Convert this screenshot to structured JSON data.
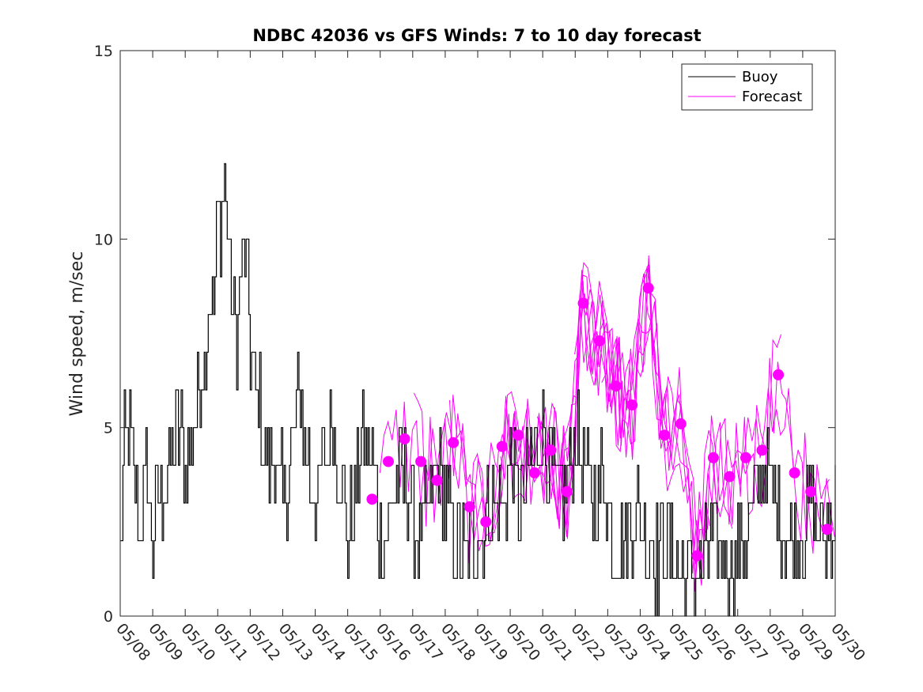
{
  "chart_data": {
    "type": "line",
    "title": "NDBC 42036 vs GFS Winds: 7 to 10 day forecast",
    "xlabel": "",
    "ylabel": "Wind speed, m/sec",
    "ylim": [
      0,
      15
    ],
    "xlim": [
      0,
      22
    ],
    "x_ticks": [
      "05/08",
      "05/09",
      "05/10",
      "05/11",
      "05/12",
      "05/13",
      "05/14",
      "05/15",
      "05/16",
      "05/17",
      "05/18",
      "05/19",
      "05/20",
      "05/21",
      "05/22",
      "05/23",
      "05/24",
      "05/25",
      "05/26",
      "05/27",
      "05/28",
      "05/29",
      "05/30"
    ],
    "y_ticks": [
      0,
      5,
      10,
      15
    ],
    "grid": false,
    "legend_position": "top-right",
    "colors": {
      "buoy": "#000000",
      "forecast": "#ff00ff",
      "axis": "#262626"
    },
    "legend": [
      {
        "label": "Buoy",
        "color": "#000000"
      },
      {
        "label": "Forecast",
        "color": "#ff00ff"
      }
    ],
    "series": [
      {
        "name": "Buoy",
        "x_unit": "days since 05/08",
        "anchors": [
          [
            0.0,
            2
          ],
          [
            0.1,
            4
          ],
          [
            0.2,
            5
          ],
          [
            0.4,
            4
          ],
          [
            0.6,
            2
          ],
          [
            0.8,
            4
          ],
          [
            1.0,
            2
          ],
          [
            1.2,
            3
          ],
          [
            1.5,
            4
          ],
          [
            1.8,
            5
          ],
          [
            2.0,
            4
          ],
          [
            2.2,
            5
          ],
          [
            2.4,
            6
          ],
          [
            2.6,
            7
          ],
          [
            2.8,
            9
          ],
          [
            2.9,
            8
          ],
          [
            3.0,
            11
          ],
          [
            3.1,
            10
          ],
          [
            3.2,
            12
          ],
          [
            3.3,
            10
          ],
          [
            3.5,
            8
          ],
          [
            3.6,
            7
          ],
          [
            3.7,
            9
          ],
          [
            3.8,
            10
          ],
          [
            4.0,
            7
          ],
          [
            4.2,
            6
          ],
          [
            4.5,
            4
          ],
          [
            4.8,
            4
          ],
          [
            5.0,
            3
          ],
          [
            5.2,
            4
          ],
          [
            5.5,
            6
          ],
          [
            5.8,
            4
          ],
          [
            6.0,
            3
          ],
          [
            6.3,
            4
          ],
          [
            6.5,
            5
          ],
          [
            6.8,
            4
          ],
          [
            7.0,
            2
          ],
          [
            7.2,
            3
          ],
          [
            7.5,
            5
          ],
          [
            7.8,
            4
          ],
          [
            8.0,
            2
          ],
          [
            8.3,
            3
          ],
          [
            8.6,
            4
          ],
          [
            8.9,
            3
          ],
          [
            9.2,
            2
          ],
          [
            9.5,
            3
          ],
          [
            9.8,
            4
          ],
          [
            10.0,
            3
          ],
          [
            10.3,
            2
          ],
          [
            10.6,
            1.5
          ],
          [
            10.9,
            2
          ],
          [
            11.2,
            2.5
          ],
          [
            11.5,
            3
          ],
          [
            11.8,
            3
          ],
          [
            12.0,
            4
          ],
          [
            12.3,
            3
          ],
          [
            12.6,
            4
          ],
          [
            12.9,
            5
          ],
          [
            13.2,
            4
          ],
          [
            13.5,
            3
          ],
          [
            13.8,
            4
          ],
          [
            14.0,
            5
          ],
          [
            14.3,
            4
          ],
          [
            14.6,
            3
          ],
          [
            14.9,
            4
          ],
          [
            15.1,
            2
          ],
          [
            15.3,
            1.5
          ],
          [
            15.6,
            2.5
          ],
          [
            15.9,
            3
          ],
          [
            16.2,
            2
          ],
          [
            16.5,
            1.5
          ],
          [
            16.8,
            2
          ],
          [
            17.1,
            1.5
          ],
          [
            17.4,
            1.2
          ],
          [
            17.7,
            1.2
          ],
          [
            18.0,
            1.5
          ],
          [
            18.3,
            2
          ],
          [
            18.6,
            1.5
          ],
          [
            18.9,
            1.5
          ],
          [
            19.2,
            2
          ],
          [
            19.5,
            3
          ],
          [
            19.8,
            4
          ],
          [
            20.1,
            3
          ],
          [
            20.4,
            2.5
          ],
          [
            20.7,
            2
          ],
          [
            21.0,
            2
          ],
          [
            21.3,
            3
          ],
          [
            21.6,
            2
          ],
          [
            22.0,
            3
          ]
        ]
      },
      {
        "name": "Forecast",
        "x_unit": "days since 05/08",
        "markers": [
          [
            7.75,
            3.1
          ],
          [
            8.25,
            4.1
          ],
          [
            8.75,
            4.7
          ],
          [
            9.25,
            4.1
          ],
          [
            9.75,
            3.6
          ],
          [
            10.25,
            4.6
          ],
          [
            10.75,
            2.9
          ],
          [
            11.25,
            2.5
          ],
          [
            11.75,
            4.5
          ],
          [
            12.25,
            4.8
          ],
          [
            12.75,
            3.8
          ],
          [
            13.25,
            4.4
          ],
          [
            13.75,
            3.3
          ],
          [
            14.25,
            8.3
          ],
          [
            14.75,
            7.3
          ],
          [
            15.25,
            6.1
          ],
          [
            15.75,
            5.6
          ],
          [
            16.25,
            8.7
          ],
          [
            16.75,
            4.8
          ],
          [
            17.25,
            5.1
          ],
          [
            17.75,
            1.6
          ],
          [
            18.25,
            4.2
          ],
          [
            18.75,
            3.7
          ],
          [
            19.25,
            4.2
          ],
          [
            19.75,
            4.4
          ],
          [
            20.25,
            6.4
          ],
          [
            20.75,
            3.8
          ],
          [
            21.25,
            3.3
          ],
          [
            21.75,
            2.3
          ]
        ]
      }
    ]
  }
}
